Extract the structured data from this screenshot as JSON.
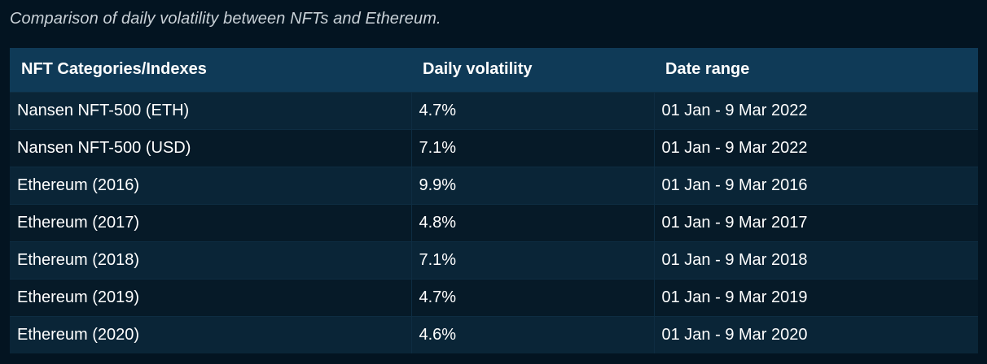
{
  "caption": "Comparison of daily volatility between NFTs and Ethereum.",
  "table": {
    "headers": [
      "NFT Categories/Indexes",
      "Daily volatility",
      "Date range"
    ],
    "rows": [
      [
        "Nansen NFT-500 (ETH)",
        "4.7%",
        "01 Jan - 9 Mar 2022"
      ],
      [
        "Nansen NFT-500 (USD)",
        "7.1%",
        "01 Jan - 9 Mar 2022"
      ],
      [
        "Ethereum (2016)",
        "9.9%",
        "01 Jan - 9 Mar 2016"
      ],
      [
        "Ethereum (2017)",
        "4.8%",
        "01 Jan - 9 Mar 2017"
      ],
      [
        "Ethereum (2018)",
        "7.1%",
        "01 Jan - 9 Mar 2018"
      ],
      [
        "Ethereum (2019)",
        "4.7%",
        "01 Jan - 9 Mar 2019"
      ],
      [
        "Ethereum (2020)",
        "4.6%",
        "01 Jan - 9 Mar 2020"
      ]
    ]
  },
  "colors": {
    "page_background": "#031421",
    "header_background": "#0f3a57",
    "row_odd": "#0a2537",
    "row_even": "#061a28"
  }
}
